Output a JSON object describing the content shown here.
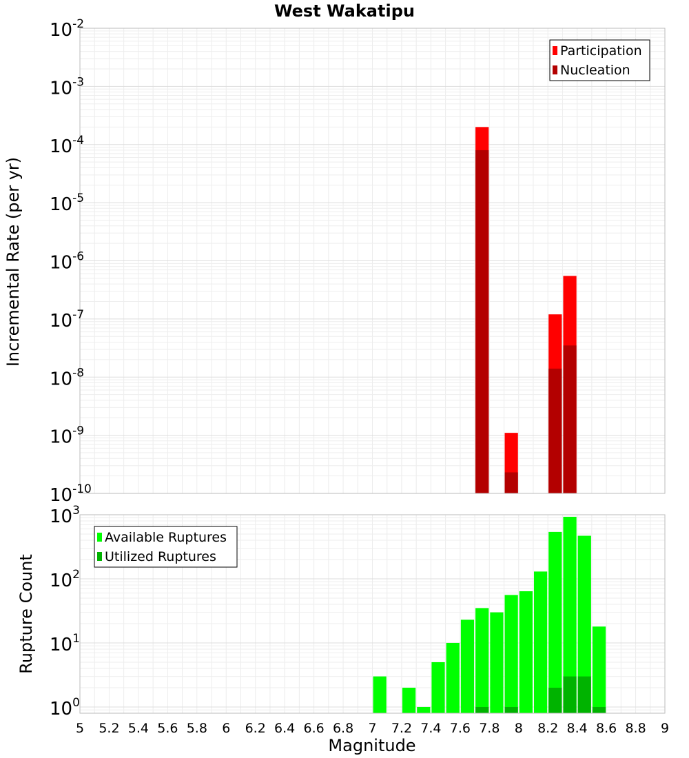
{
  "chart_data": [
    {
      "type": "bar",
      "title": "West Wakatipu",
      "ylabel": "Incremental Rate (per yr)",
      "xlabel": "",
      "yscale": "log",
      "xlim": [
        5,
        9
      ],
      "ylim": [
        1e-10,
        0.01
      ],
      "grid": true,
      "legend": "top-right",
      "series": [
        {
          "name": "Participation",
          "color": "#ff0000",
          "x": [
            7.75,
            7.95,
            8.25,
            8.35
          ],
          "values": [
            0.0002,
            1.1e-09,
            1.2e-07,
            5.5e-07
          ]
        },
        {
          "name": "Nucleation",
          "color": "#b30000",
          "x": [
            7.75,
            7.95,
            8.25,
            8.35
          ],
          "values": [
            8e-05,
            2.3e-10,
            1.4e-08,
            3.5e-08
          ]
        }
      ],
      "ytick_labels": [
        {
          "base": "10",
          "exp": "-10"
        },
        {
          "base": "10",
          "exp": "-9"
        },
        {
          "base": "10",
          "exp": "-8"
        },
        {
          "base": "10",
          "exp": "-7"
        },
        {
          "base": "10",
          "exp": "-6"
        },
        {
          "base": "10",
          "exp": "-5"
        },
        {
          "base": "10",
          "exp": "-4"
        },
        {
          "base": "10",
          "exp": "-3"
        },
        {
          "base": "10",
          "exp": "-2"
        }
      ]
    },
    {
      "type": "bar",
      "title": "",
      "ylabel": "Rupture Count",
      "xlabel": "Magnitude",
      "yscale": "log",
      "xlim": [
        5,
        9
      ],
      "ylim": [
        0.8,
        1000
      ],
      "grid": true,
      "legend": "top-left",
      "series": [
        {
          "name": "Available Ruptures",
          "color": "#00ff00",
          "x": [
            7.05,
            7.25,
            7.35,
            7.45,
            7.55,
            7.65,
            7.75,
            7.85,
            7.95,
            8.05,
            8.15,
            8.25,
            8.35,
            8.45,
            8.55
          ],
          "values": [
            3,
            2,
            1,
            5,
            10,
            23,
            35,
            30,
            56,
            64,
            130,
            540,
            930,
            470,
            18
          ]
        },
        {
          "name": "Utilized Ruptures",
          "color": "#00b300",
          "x": [
            7.75,
            7.95,
            8.25,
            8.35,
            8.45,
            8.55
          ],
          "values": [
            1,
            1,
            2,
            3,
            3,
            1
          ]
        }
      ],
      "ytick_labels": [
        {
          "base": "10",
          "exp": "0"
        },
        {
          "base": "10",
          "exp": "1"
        },
        {
          "base": "10",
          "exp": "2"
        },
        {
          "base": "10",
          "exp": "3"
        }
      ],
      "xtick_labels": [
        "5",
        "5.2",
        "5.4",
        "5.6",
        "5.8",
        "6",
        "6.2",
        "6.4",
        "6.6",
        "6.8",
        "7",
        "7.2",
        "7.4",
        "7.6",
        "7.8",
        "8",
        "8.2",
        "8.4",
        "8.6",
        "8.8",
        "9"
      ]
    }
  ]
}
